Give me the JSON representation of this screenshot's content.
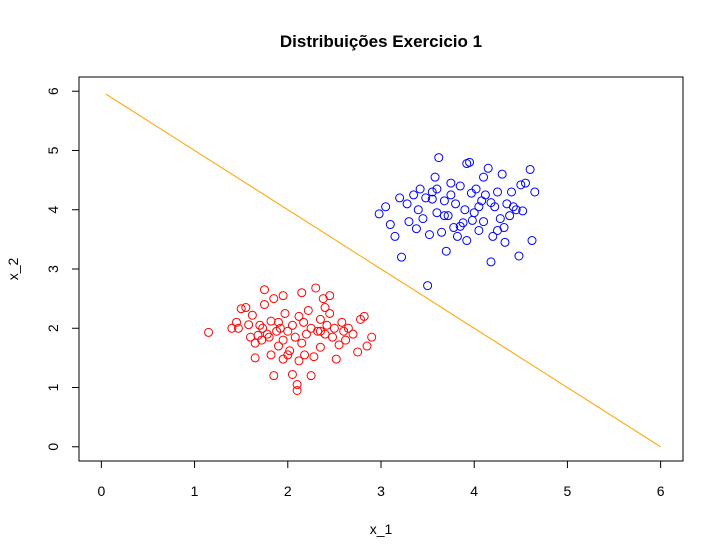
{
  "chart_data": {
    "type": "scatter",
    "title": "Distribuições Exercicio 1",
    "xlabel": "x_1",
    "ylabel": "x_2",
    "xlim": [
      -0.24,
      6.24
    ],
    "ylim": [
      -0.24,
      6.24
    ],
    "xticks": [
      0,
      1,
      2,
      3,
      4,
      5,
      6
    ],
    "yticks": [
      0,
      1,
      2,
      3,
      4,
      5,
      6
    ],
    "grid": false,
    "legend": "none",
    "series": [
      {
        "color": "#ff0000",
        "marker": "open-circle",
        "points": [
          [
            1.15,
            1.93
          ],
          [
            1.4,
            2.0
          ],
          [
            1.45,
            2.1
          ],
          [
            1.47,
            2.0
          ],
          [
            1.5,
            2.33
          ],
          [
            1.55,
            2.35
          ],
          [
            1.58,
            2.06
          ],
          [
            1.6,
            1.85
          ],
          [
            1.62,
            2.22
          ],
          [
            1.65,
            1.75
          ],
          [
            1.65,
            1.5
          ],
          [
            1.7,
            2.05
          ],
          [
            1.72,
            1.8
          ],
          [
            1.73,
            2.0
          ],
          [
            1.75,
            2.4
          ],
          [
            1.75,
            2.65
          ],
          [
            1.78,
            1.9
          ],
          [
            1.8,
            1.85
          ],
          [
            1.82,
            1.55
          ],
          [
            1.85,
            1.2
          ],
          [
            1.85,
            2.5
          ],
          [
            1.88,
            1.95
          ],
          [
            1.9,
            1.7
          ],
          [
            1.9,
            2.1
          ],
          [
            1.92,
            2.0
          ],
          [
            1.95,
            2.55
          ],
          [
            1.95,
            1.8
          ],
          [
            1.97,
            2.25
          ],
          [
            2.0,
            1.95
          ],
          [
            2.0,
            1.55
          ],
          [
            2.02,
            1.62
          ],
          [
            2.05,
            1.22
          ],
          [
            2.05,
            2.05
          ],
          [
            2.08,
            1.85
          ],
          [
            2.1,
            0.95
          ],
          [
            2.1,
            1.05
          ],
          [
            2.12,
            1.45
          ],
          [
            2.12,
            2.2
          ],
          [
            2.15,
            1.75
          ],
          [
            2.17,
            2.1
          ],
          [
            2.18,
            1.55
          ],
          [
            2.2,
            1.9
          ],
          [
            2.22,
            2.3
          ],
          [
            2.25,
            1.2
          ],
          [
            2.25,
            2.0
          ],
          [
            2.28,
            1.52
          ],
          [
            2.3,
            2.68
          ],
          [
            2.32,
            1.95
          ],
          [
            2.35,
            2.15
          ],
          [
            2.35,
            1.68
          ],
          [
            2.38,
            2.5
          ],
          [
            2.4,
            1.9
          ],
          [
            2.4,
            2.35
          ],
          [
            2.42,
            2.05
          ],
          [
            2.45,
            2.55
          ],
          [
            2.48,
            1.85
          ],
          [
            2.5,
            2.0
          ],
          [
            2.52,
            1.48
          ],
          [
            2.55,
            1.72
          ],
          [
            2.58,
            2.1
          ],
          [
            2.6,
            1.95
          ],
          [
            2.62,
            1.8
          ],
          [
            2.65,
            2.0
          ],
          [
            2.7,
            1.9
          ],
          [
            2.75,
            1.6
          ],
          [
            2.78,
            2.15
          ],
          [
            2.82,
            2.2
          ],
          [
            2.85,
            1.7
          ],
          [
            2.9,
            1.85
          ],
          [
            1.82,
            2.12
          ],
          [
            2.15,
            2.6
          ],
          [
            2.45,
            2.25
          ],
          [
            1.95,
            1.48
          ],
          [
            2.35,
            1.95
          ],
          [
            1.68,
            1.88
          ]
        ]
      },
      {
        "color": "#0000ff",
        "marker": "open-circle",
        "points": [
          [
            2.98,
            3.93
          ],
          [
            3.05,
            4.05
          ],
          [
            3.1,
            3.75
          ],
          [
            3.15,
            3.55
          ],
          [
            3.2,
            4.2
          ],
          [
            3.22,
            3.2
          ],
          [
            3.28,
            4.1
          ],
          [
            3.3,
            3.8
          ],
          [
            3.35,
            4.25
          ],
          [
            3.38,
            3.68
          ],
          [
            3.4,
            4.0
          ],
          [
            3.42,
            4.35
          ],
          [
            3.45,
            3.85
          ],
          [
            3.48,
            4.2
          ],
          [
            3.5,
            2.72
          ],
          [
            3.52,
            3.58
          ],
          [
            3.55,
            4.3
          ],
          [
            3.58,
            4.55
          ],
          [
            3.6,
            3.95
          ],
          [
            3.62,
            4.88
          ],
          [
            3.65,
            3.62
          ],
          [
            3.68,
            4.15
          ],
          [
            3.7,
            3.3
          ],
          [
            3.72,
            3.9
          ],
          [
            3.75,
            4.25
          ],
          [
            3.78,
            3.7
          ],
          [
            3.8,
            4.1
          ],
          [
            3.82,
            3.55
          ],
          [
            3.85,
            4.4
          ],
          [
            3.88,
            3.78
          ],
          [
            3.9,
            4.0
          ],
          [
            3.92,
            3.48
          ],
          [
            3.95,
            4.8
          ],
          [
            3.97,
            4.28
          ],
          [
            4.0,
            3.95
          ],
          [
            4.02,
            4.35
          ],
          [
            4.05,
            3.65
          ],
          [
            4.08,
            4.15
          ],
          [
            4.1,
            3.8
          ],
          [
            4.12,
            4.25
          ],
          [
            4.15,
            4.7
          ],
          [
            4.18,
            3.12
          ],
          [
            4.2,
            3.55
          ],
          [
            4.22,
            4.05
          ],
          [
            4.25,
            4.3
          ],
          [
            4.28,
            3.85
          ],
          [
            4.3,
            4.6
          ],
          [
            4.33,
            3.45
          ],
          [
            4.35,
            4.1
          ],
          [
            4.38,
            3.9
          ],
          [
            4.4,
            4.3
          ],
          [
            4.42,
            4.05
          ],
          [
            4.45,
            4.0
          ],
          [
            4.48,
            3.22
          ],
          [
            4.5,
            4.42
          ],
          [
            4.52,
            3.98
          ],
          [
            4.55,
            4.45
          ],
          [
            4.6,
            4.68
          ],
          [
            4.62,
            3.48
          ],
          [
            4.65,
            4.3
          ],
          [
            3.75,
            4.45
          ],
          [
            4.05,
            4.05
          ],
          [
            3.92,
            4.78
          ],
          [
            4.18,
            4.12
          ],
          [
            3.6,
            4.35
          ],
          [
            4.32,
            3.7
          ],
          [
            3.85,
            3.72
          ],
          [
            3.55,
            4.18
          ],
          [
            4.1,
            4.55
          ],
          [
            3.98,
            3.82
          ],
          [
            4.25,
            3.65
          ],
          [
            3.68,
            3.9
          ]
        ]
      }
    ],
    "line": {
      "color": "#ffa500",
      "x": [
        0.05,
        6.0
      ],
      "y": [
        5.95,
        0.0
      ]
    }
  }
}
